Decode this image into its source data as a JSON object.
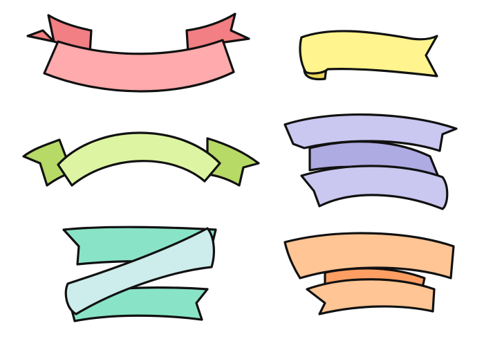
{
  "page": {
    "background": "#ffffff"
  },
  "stroke_color": "#111111",
  "ribbons": [
    {
      "id": "ribbon-pink",
      "shape": "arched banner with forked tails",
      "front_color": "#ffaaac",
      "back_color": "#f17f83"
    },
    {
      "id": "ribbon-yellow",
      "shape": "wavy banner with curled end",
      "front_color": "#fff48d",
      "back_color": "#ead75a"
    },
    {
      "id": "ribbon-green",
      "shape": "arched banner with forked tails",
      "front_color": "#ddf5a2",
      "back_color": "#b7d966"
    },
    {
      "id": "ribbon-purple",
      "shape": "folded zigzag banner",
      "front_color": "#cac8f0",
      "back_color": "#aeaae2"
    },
    {
      "id": "ribbon-teal",
      "shape": "folded zigzag banner",
      "front_color": "#cdecec",
      "back_color": "#89e4c7"
    },
    {
      "id": "ribbon-orange",
      "shape": "arched folded banner",
      "front_color": "#ffc594",
      "back_color": "#ff9e63"
    }
  ]
}
